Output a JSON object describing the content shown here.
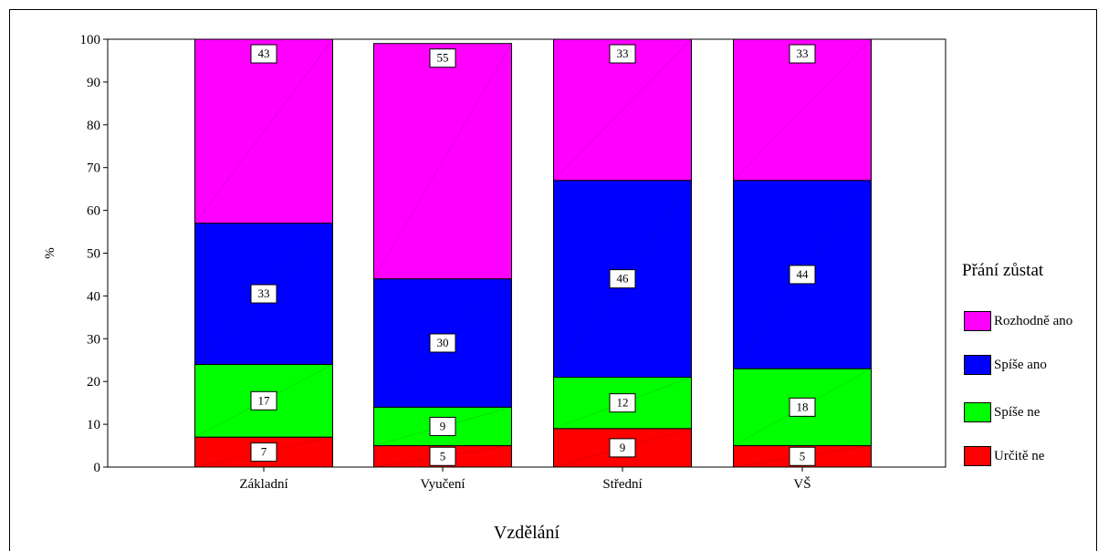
{
  "chart_data": {
    "type": "bar",
    "stacked": true,
    "categories": [
      "Základní",
      "Vyučení",
      "Střední",
      "VŠ"
    ],
    "xlabel": "Vzdělání",
    "ylabel": "%",
    "ylim": [
      0,
      100
    ],
    "yticks": [
      0,
      10,
      20,
      30,
      40,
      50,
      60,
      70,
      80,
      90,
      100
    ],
    "legend_title": "Přání zůstat",
    "legend_position": "right",
    "grid": false,
    "series": [
      {
        "name": "Určitě ne",
        "color": "#ff0000",
        "values": [
          7,
          5,
          9,
          5
        ],
        "labels": [
          "7",
          "5",
          "9",
          "5"
        ]
      },
      {
        "name": "Spíše ne",
        "color": "#00ff00",
        "values": [
          17,
          9,
          12,
          18
        ],
        "labels": [
          "17",
          "9",
          "12",
          "18"
        ]
      },
      {
        "name": "Spíše ano",
        "color": "#0000ff",
        "values": [
          33,
          30,
          46,
          44
        ],
        "labels": [
          "33",
          "30",
          "46",
          "44"
        ]
      },
      {
        "name": "Rozhodně ano",
        "color": "#ff00ff",
        "values": [
          43,
          55,
          33,
          33
        ],
        "labels": [
          "43",
          "55",
          "33",
          "33"
        ]
      }
    ]
  }
}
